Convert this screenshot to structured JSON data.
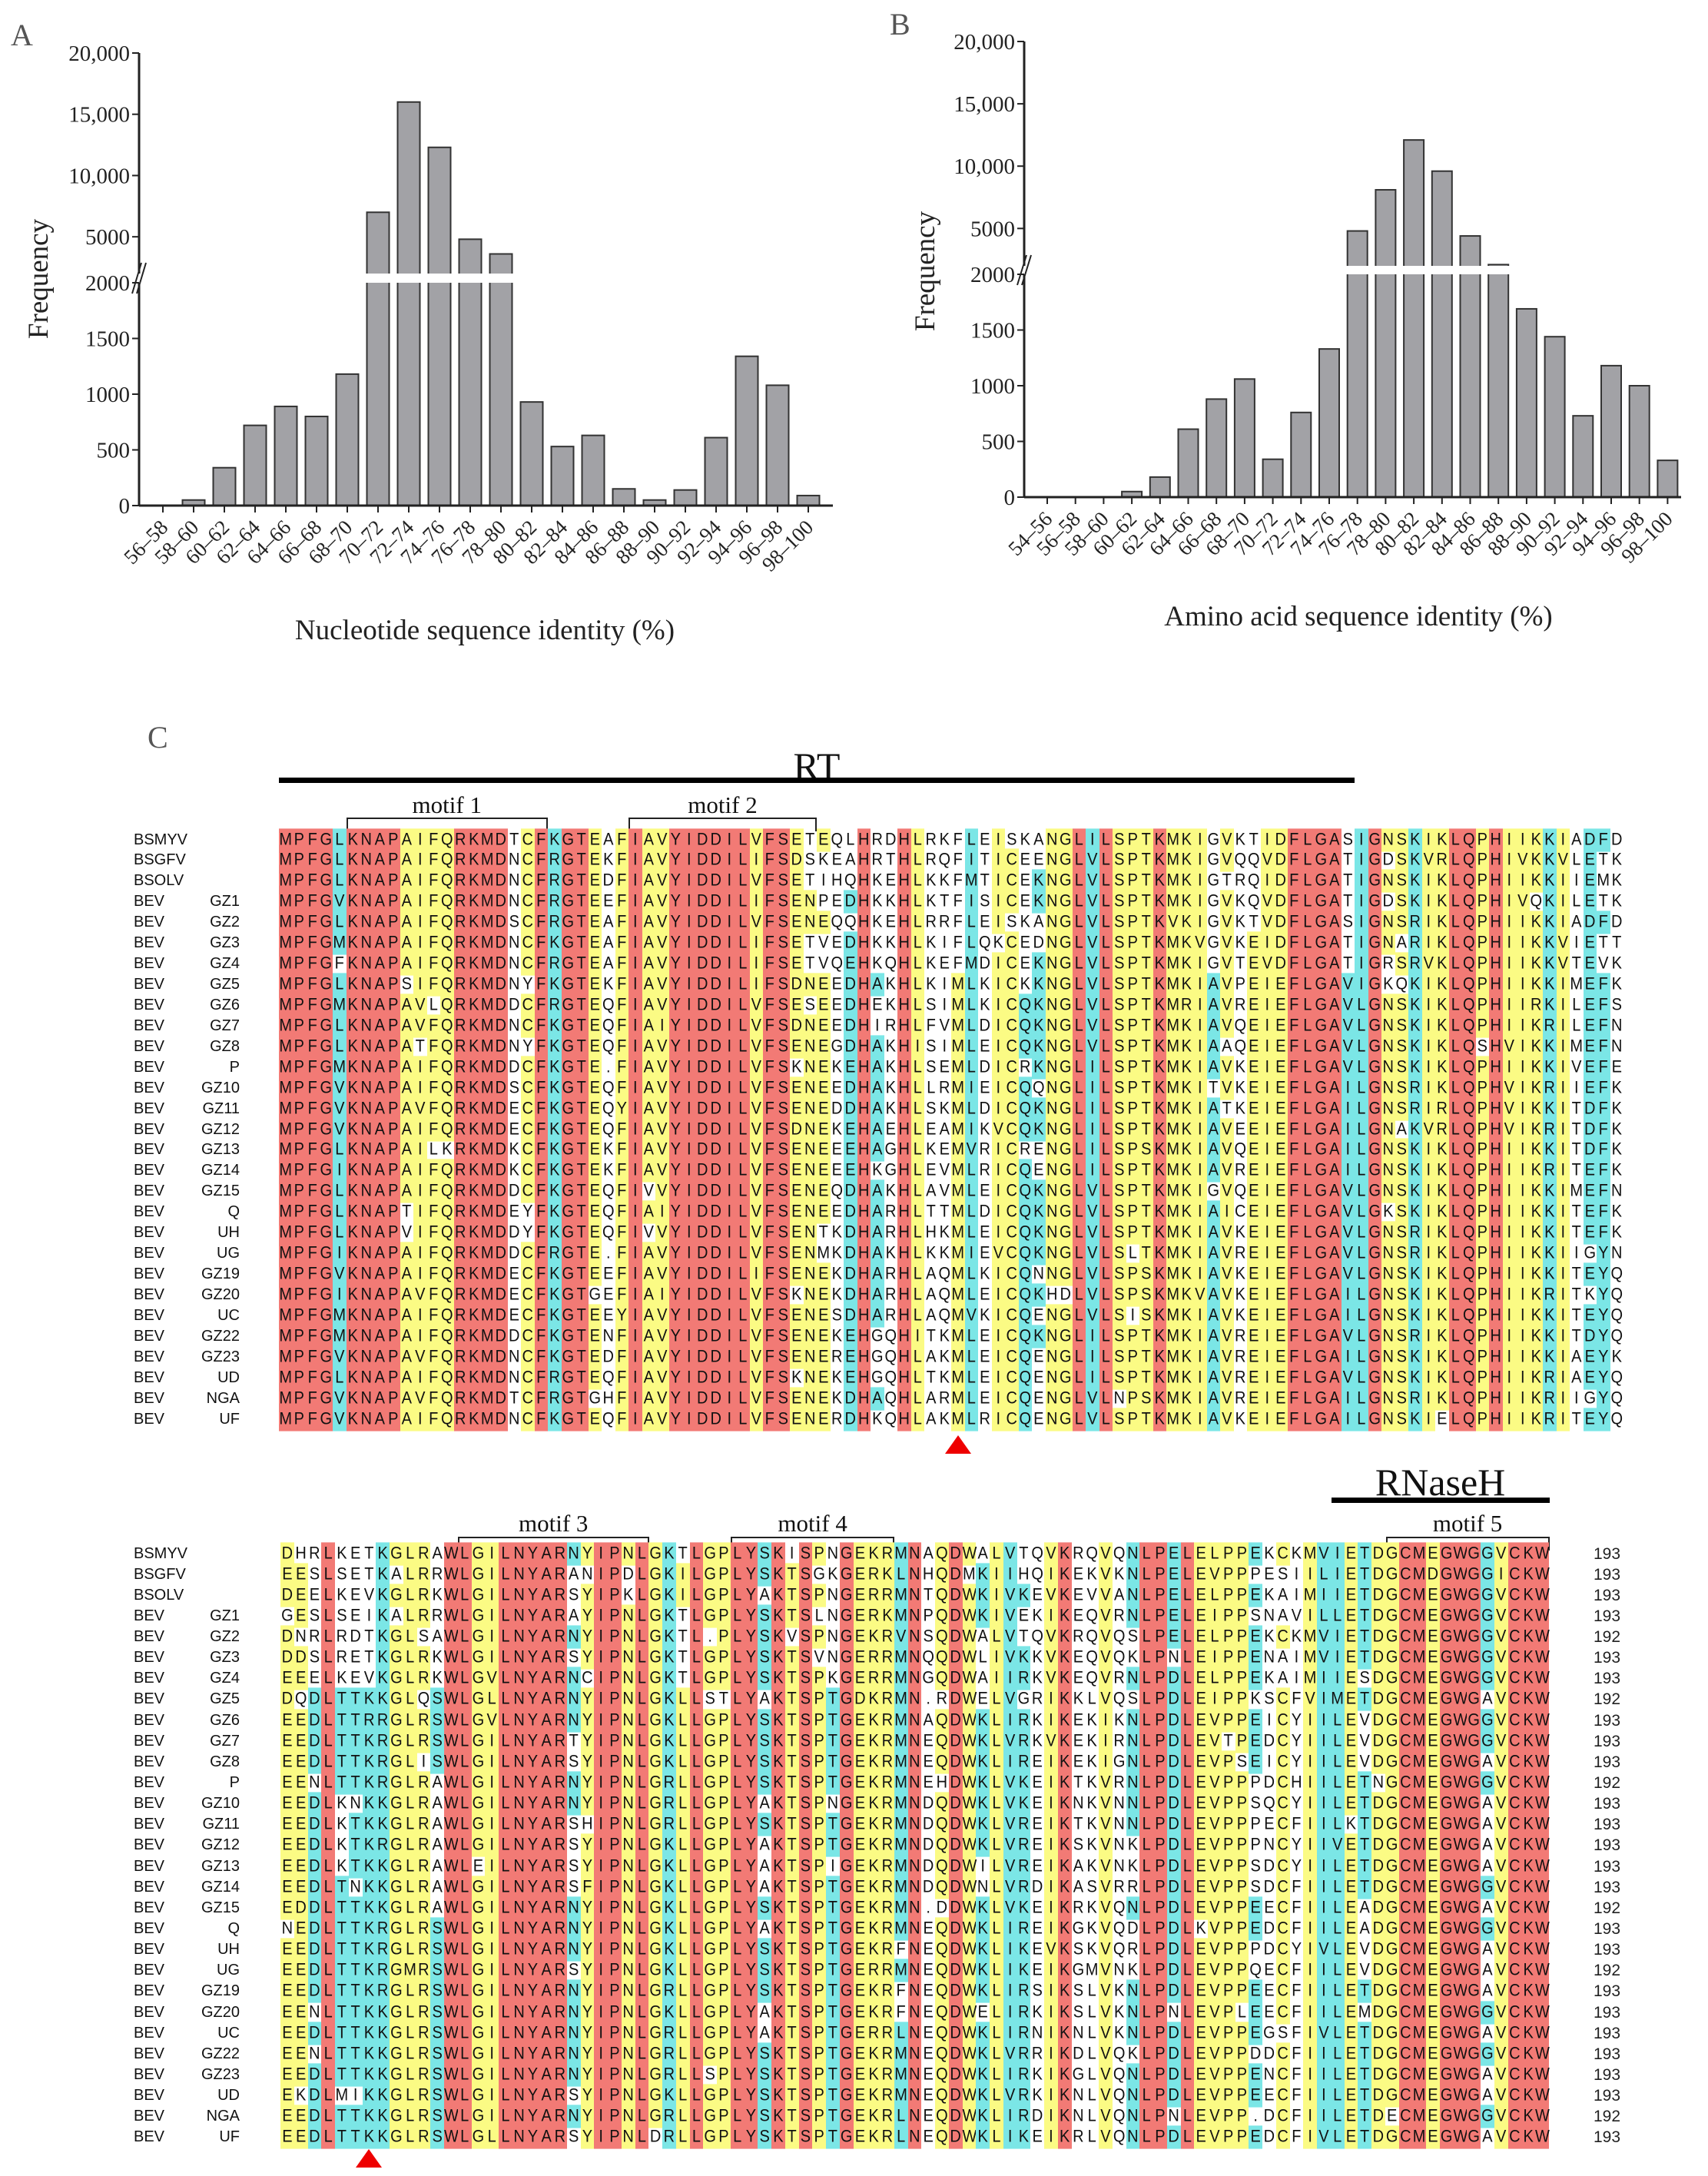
{
  "colors": {
    "identical": "#f27a75",
    "conserved": "#fbfb84",
    "similar": "#7be6e6",
    "bar_fill": "#a2a2a6",
    "marker": "#ee0000"
  },
  "chart_data": [
    {
      "panel_label": "A",
      "type": "bar",
      "title": "",
      "xlabel": "Nucleotide sequence identity (%)",
      "ylabel": "Frequency",
      "axis_break": [
        2000,
        2000
      ],
      "ylim_lower": [
        0,
        2000
      ],
      "ylim_upper": [
        2000,
        20000
      ],
      "yticks": [
        {
          "label": "0",
          "value": 0
        },
        {
          "label": "500",
          "value": 500
        },
        {
          "label": "1000",
          "value": 1000
        },
        {
          "label": "1500",
          "value": 1500
        },
        {
          "label": "2000",
          "value": 2000
        },
        {
          "label": "5000",
          "value": 5000
        },
        {
          "label": "10,000",
          "value": 10000
        },
        {
          "label": "15,000",
          "value": 15000
        },
        {
          "label": "20,000",
          "value": 20000
        }
      ],
      "grid": false,
      "categories": [
        "56–58",
        "58–60",
        "60–62",
        "62–64",
        "64–66",
        "66–68",
        "68–70",
        "70–72",
        "72–74",
        "74–76",
        "76–78",
        "78–80",
        "80–82",
        "82–84",
        "84–86",
        "86–88",
        "88–90",
        "90–92",
        "92–94",
        "94–96",
        "96–98",
        "98–100"
      ],
      "values": [
        0,
        50,
        340,
        720,
        890,
        800,
        1180,
        7000,
        16000,
        12300,
        4800,
        3600,
        930,
        530,
        630,
        150,
        50,
        140,
        610,
        1340,
        1080,
        90
      ]
    },
    {
      "panel_label": "B",
      "type": "bar",
      "title": "",
      "xlabel": "Amino acid sequence identity (%)",
      "ylabel": "Frequency",
      "axis_break": [
        2000,
        2000
      ],
      "ylim_lower": [
        0,
        2000
      ],
      "ylim_upper": [
        2000,
        20000
      ],
      "yticks": [
        {
          "label": "0",
          "value": 0
        },
        {
          "label": "500",
          "value": 500
        },
        {
          "label": "1000",
          "value": 1000
        },
        {
          "label": "1500",
          "value": 1500
        },
        {
          "label": "2000",
          "value": 2000
        },
        {
          "label": "5000",
          "value": 5000
        },
        {
          "label": "10,000",
          "value": 10000
        },
        {
          "label": "15,000",
          "value": 15000
        },
        {
          "label": "20,000",
          "value": 20000
        }
      ],
      "grid": false,
      "categories": [
        "54–56",
        "56–58",
        "58–60",
        "60–62",
        "62–64",
        "64–66",
        "66–68",
        "68–70",
        "70–72",
        "72–74",
        "74–76",
        "76–78",
        "78–80",
        "80–82",
        "82–84",
        "84–86",
        "86–88",
        "88–90",
        "90–92",
        "92–94",
        "94–96",
        "96–98",
        "98–100"
      ],
      "values": [
        0,
        0,
        0,
        50,
        180,
        610,
        880,
        1060,
        340,
        760,
        1330,
        4800,
        8100,
        12100,
        9600,
        4400,
        2100,
        1690,
        1440,
        730,
        1180,
        1000,
        330
      ]
    }
  ],
  "alignment": {
    "panel_label": "C",
    "names": [
      {
        "p": "BSMYV",
        "id": ""
      },
      {
        "p": "BSGFV",
        "id": ""
      },
      {
        "p": "BSOLV",
        "id": ""
      },
      {
        "p": "BEV",
        "id": "GZ1"
      },
      {
        "p": "BEV",
        "id": "GZ2"
      },
      {
        "p": "BEV",
        "id": "GZ3"
      },
      {
        "p": "BEV",
        "id": "GZ4"
      },
      {
        "p": "BEV",
        "id": "GZ5"
      },
      {
        "p": "BEV",
        "id": "GZ6"
      },
      {
        "p": "BEV",
        "id": "GZ7"
      },
      {
        "p": "BEV",
        "id": "GZ8"
      },
      {
        "p": "BEV",
        "id": "P"
      },
      {
        "p": "BEV",
        "id": "GZ10"
      },
      {
        "p": "BEV",
        "id": "GZ11"
      },
      {
        "p": "BEV",
        "id": "GZ12"
      },
      {
        "p": "BEV",
        "id": "GZ13"
      },
      {
        "p": "BEV",
        "id": "GZ14"
      },
      {
        "p": "BEV",
        "id": "GZ15"
      },
      {
        "p": "BEV",
        "id": "Q"
      },
      {
        "p": "BEV",
        "id": "UH"
      },
      {
        "p": "BEV",
        "id": "UG"
      },
      {
        "p": "BEV",
        "id": "GZ19"
      },
      {
        "p": "BEV",
        "id": "GZ20"
      },
      {
        "p": "BEV",
        "id": "UC"
      },
      {
        "p": "BEV",
        "id": "GZ22"
      },
      {
        "p": "BEV",
        "id": "GZ23"
      },
      {
        "p": "BEV",
        "id": "UD"
      },
      {
        "p": "BEV",
        "id": "NGA"
      },
      {
        "p": "BEV",
        "id": "UF"
      }
    ],
    "blocks": [
      {
        "domain_label": "RT",
        "domain_columns": [
          0,
          79
        ],
        "motifs": [
          {
            "label": "motif 1",
            "columns": [
              5,
              19
            ]
          },
          {
            "label": "motif 2",
            "columns": [
              26,
              39
            ]
          }
        ],
        "marker_column": 50,
        "sequences": [
          "MPFGLKNAPAIFQRKMDTCFKGTEAFIAVYIDDILVFSETEQLHRDHLRKFLEISKANGLILSPTKMKIGVKTIDFLGASIGNSKIKLQPHIIKKIADFD",
          "MPFGLKNAPAIFQRKMDNCFRGTEKFIAVYIDDILIFSDSKEAHRTHLRQFITICEENGLVLSPTKMKIGVQQVDFLGATIGDSKVRLQPHIVKKVLETK",
          "MPFGLKNAPAIFQRKMDNCFRGTEDFIAVYIDDILVFSETIHQHKEHLKKFMTICEKNGLVLSPTKMKIGTRQIDFLGATIGNSKIKLQPHIIKKIIEMK",
          "MPFGVKNAPAIFQRKMDNCFRGTEEFIAVYIDDILIFSENPEDHKKHLKTFISICEKNGLVLSPTKMKIGVKQVDFLGATIGDSKIKLQPHIVQKILETK",
          "MPFGLKNAPAIFQRKMDSCFRGTEAFIAVYIDDILVFSENEQQHKEHLRRFLEISKANGLVLSPTKVKIGVKTVDFLGASIGNSRIKLQPHIIKKIADFD",
          "MPFGMKNAPAIFQRKMDNCFKGTEAFIAVYIDDILIFSETVEDHKKHLKIFLQKCEDNGLVLSPTKMKVGVKEIDFLGATIGNARIKLQPHIIKKVIETT",
          "MPFGFKNAPAIFQRKMDNCFRGTEAFIAVYIDDILIFSETVQEHKQHLKEFMDICEKNGLVLSPTKMKIGVTEVDFLGATIGRSRVKLQPHIIKKVTEVK",
          "MPFGLKNAPSIFQRKMDNYFKGTEKFIAVYIDDILIFSDNEEDHAKHLKIMLKICKKNGLVLSPTKMKIAVPEIEFLGAVIGKQKIKLQPHIIKKIMEFK",
          "MPFGMKNAPAVLQRKMDDCFRGTEQFIAVYIDDILVFSESEEDHEKHLSIMLKICQKNGLVLSPTKMRIAVREIEFLGAVLGNSKIKLQPHIIRKILEFS",
          "MPFGLKNAPAVFQRKMDNCFKGTEQFIAIYIDDILVFSDNEEDHIRHLFVMLDICQKNGLVLSPTKMKIAVQEIEFLGAVLGNSKIKLQPHIIKRILEFN",
          "MPFGLKNAPATFQRKMDNYFKGTEQFIAVYIDDILVFSENEGDHAKHISIMLEICQKNGLVLSPTKMKIAAQEIEFLGAVLGNSKIKLQSHVIKKIMEFN",
          "MPFGMKNAPAIFQRKMDDCFKGTE.FIAVYIDDILVFSKNEKEHAKHLSEMLDICRKNGLILSPTKMKIAVKEIEFLGAVLGNSKIKLQPHIIKKIVEFE",
          "MPFGVKNAPAIFQRKMDSCFKGTEQFIAVYIDDILVFSENEEDHAKHLLRMIEICQQNGLILSPTKMKITVKEIEFLGAILGNSRIKLQPHVIKRIIEFK",
          "MPFGVKNAPAVFQRKMDECFKGTEQYIAVYIDDILVFSENEDDHAKHLSKMLDICQKNGLILSPTKMKIATKEIEFLGAILGNSRIRLQPHVIKKITDFK",
          "MPFGVKNAPAIFQRKMDECFKGTEQFIAVYIDDILVFSDNEKEHAEHLEAMIKVCQKNGLILSPTKMKIAVEEIEFLGAILGNAKVRLQPHVIKRITDFK",
          "MPFGLKNAPAILKRKMDKCFKGTEKFIAVYIDDILVFSENEEEHAGHLKEMVRICRENGLILSPSKMKIAVQEIEFLGAILGNSKIKLQPHIIKKITDFK",
          "MPFGIKNAPAIFQRKMDKCFKGTEKFIAVYIDDILVFSENEEEHKGHLEVMLRICQENGLILSPTKMKIAVREIEFLGAILGNSKIKLQPHIIKRITEFK",
          "MPFGLKNAPAIFQRKMDDCFKGTEQFIVVYIDDILVFSENEQDHAKHLAVMLEICQKNGLVLSPTKMKIGVQEIEFLGAVLGNSKIKLQPHIIKKIMEFN",
          "MPFGLKNAPTIFQRKMDEYFKGTEQFIAIYIDDILVFSENEEDHARHLTTMLDICQKNGLVLSPTKMKIAICEIEFLGAVLGKSKIKLQPHIIKKITEFK",
          "MPFGLKNAPVIFQRKMDDYFKGTEQFIVVYIDDILVFSENTKDHARHLHKMLEICQKNGLVLSPTKMKIAVKEIEFLGAVLGNSRIKLQPHIIKKITEFK",
          "MPFGIKNAPAIFQRKMDDCFRGTE.FIAVYIDDILVFSENMKDHAKHLKKMIEVCQKNGLVLSLTKMKIAVREIEFLGAVLGNSRIKLQPHIIKKIIGYN",
          "MPFGVKNAPAIFQRKMDECFKGTEEFIAVYIDDILIFSENEKDHARHLAQMLKICQNNGLVLSPSKMKIAVKEIEFLGAVLGNSKIKLQPHIIKKITEYQ",
          "MPFGIKNAPAVFQRKMDECFKGTGEFIAIYIDDILVFSKNEKDHARHLAQMLEICQKHDLVLSPSKMKVAVKEIEFLGAILGNSKIKLQPHIIKRITKYQ",
          "MPFGMKNAPAIFQRKMDECFKGTEEYIAVYIDDILVFSENESDHARHLAQMVKICQENGLVLSISKMKIAVKEIEFLGAILGNSKIKLQPHIIKKITEYQ",
          "MPFGMKNAPAIFQRKMDDCFKGTENFIAVYIDDILVFSENEKEHGQHITKMLEICQKNGLILSPTKMKIAVREIEFLGAVLGNSRIKLQPHIIKKITDYQ",
          "MPFGVKNAPAVFQRKMDNCFKGTEDFIAVYIDDILVFSENEREHGQHLAKMLEICQENGLILSPTKMKIAVREIEFLGAILGNSKIKLQPHIIKKIAEYK",
          "MPFGLKNAPAIFQRKMDNCFRGTEQFIAVYIDDILVFSKNEKEHGQHLTKMLEICQENGLILSPTKMKIAVREIEFLGAVLGNSKIKLQPHIIKRIAEYQ",
          "MPFGVKNAPAVFQRKMDTCFRGTGHFIAVYIDDILVFSENEKDHAQHLARMLEICQENGLVLNPSKMKIAVREIEFLGAILGNSRIKLQPHIIKRIIGYQ",
          "MPFGVKNAPAIFQRKMDNCFKGTEQFIAVYIDDILVFSENERDHKQHLAKMLRICQENGLVLSPTKMKIAVKEIEFLGAILGNSKIELQPHIIKRITEYQ"
        ],
        "counts": []
      },
      {
        "domain_label": "RNaseH",
        "domain_columns": [
          77,
          92
        ],
        "motifs": [
          {
            "label": "motif 3",
            "columns": [
              13,
              26
            ]
          },
          {
            "label": "motif 4",
            "columns": [
              33,
              44
            ]
          },
          {
            "label": "motif 5",
            "columns": [
              81,
              92
            ]
          }
        ],
        "marker_column": 6,
        "sequences": [
          "DHRLKETKGLRAWLGILNYARNYIPNLGKTLGPLYSKISPNGEKRMNAQDWALVTQVKRQVQNLPELELPPEKCKMVIETDGCMEGWGGVCKW",
          "EESLSETKALRRWLGILNYARANIPDLGKILGPLYSKTSGKGERKLNHQDMKIIHQIKEKVKNLPELEVPPPESIILIETDGCMDGWGGICKW",
          "DEELKEVKGLRKWLGILNYARSYIPKLGKILGPLYAKTSPNGERRMNTQDWKIVKEVKEVVANLPELELPPEKAIMIIETDGCMEGWGGVCKW",
          "GESLSEIKALRRWLGILNYARAYIPNLGKTLGPLYSKTSLNGERKMNPQDWKIVEKIKEQVRNLPELEIPPSNAVILLETDGCMEGWGGVCKW",
          "DNRLRDTKGLSAWLGILNYARNYIPNLGKTL.PLYSKVSPNGEKRVNSQDWALVTQVKRQVQSLPELELPPEKCKMVIETDGCMEGWGGVCKW",
          "DDSLRETKGLRKWLGILNYARSYIPNLGKTLGPLYSKTSVNGERRMNQQDWLIVKKVKEQVQKLPNLEIPPENAIMVIETDGCMEGWGGVCKW",
          "EEELKEVKGLRKWLGVLNYARNCIPNLGKTLGPLYSKTSPKGERRMNGQDWAIIRKVKEQVRNLPDLELPPEKAIMIIESDGCMEGWGGVCKW",
          "DQDLTTKKGLQSWLGLLNYARNYIPNLGKLLSTLYAKTSPTGDKRMN.RDWELVGRIKKLVQSLPDLEIPPKSCFVIMETDGCMEGWGAVCKW",
          "EEDLTTRRGLRSWLGVLNYARNYIPNLGKLLGPLYSKTSPTGEKRMNAQDWKLIRKIKEKIKNLPDLEVPPEICYIILEVDGCMEGWGGVCKW",
          "EEDLTTKRGLRSWLGILNYARTYIPNLGKLLGPLYSKTSPTGEKRMNEQDWKLVRKVKEKIRNLPDLEVTPEDCYIILEVDGCMEGWGGVCKW",
          "EEDLTTKRGLISWLGILNYARSYIPNLGKLLGPLYSKTSPTGEKRMNEQDWKLIREIKEKIGNLPDLEVPSEICYIILEVDGCMEGWGAVCKW",
          "EENLTTKRGLRAWLGILNYARNYIPNLGRLLGPLYSKTSPTGEKRMNEHDWKLVKEIKTKVRNLPDLEVPPPDCHIILETNGCMEGWGGVCKW",
          "EEDLKNKKGLRAWLGILNYARNYIPNLGRLLGPLYAKTSPNGEKRMNDQDWKLVKEIKNKVNNLPDLEVPPSQCYIILETDGCMEGWGAVCKW",
          "EEDLKTKKGLRAWLGILNYARSHIPNLGRLLGPLYSKTSPTGEKRMNDQDWKLVREIKTKVNNLPDLEVPPPECFIILKTDGCMEGWGAVCKW",
          "EEDLKTKRGLRAWLGILNYARSYIPNLGKLLGPLYAKTSPTGEKRMNDQDWKLVREIKSKVNKLPDLEVPPPNCYIIVETDGCMEGWGAVCKW",
          "EEDLKTKKGLRAWLEILNYARSYIPNLGKLLGPLYAKTSPIGEKRMNDQDWILVREIKAKVNKLPDLEVPPSDCYIILETDGCMEGWGAVCKW",
          "EEDLTNKKGLRAWLGILNYARSFIPNLGKLLGPLYAKTSPTGEKRMNDQDWNLVRDIKASVRRLPDLEVPPSDCFIILETDGCMEGWGGVCKW",
          "EDDLTTKKGLRAWLGILNYARNYIPNLGKLLGPLYSKTSPTGEKRMN.DDWKLVKEIKRKVQNLPDLEVPPEECFIILEADGCMEGWGAVCKW",
          "NEDLTTKRGLRSWLGILNYARNYIPNLGKLLGPLYAKTSPTGEKRMNEQDWKLIREIKGKVQDLPDLKVPPEDCFIILEADGCMEGWGGVCKW",
          "EEDLTTKRGLRSWLGILNYARNYIPNLGKLLGPLYSKTSPTGEKRFNEQDWKLIKEVKSKVQRLPDLEVPPPDCYIVLEVDGCMEGWGAVCKW",
          "EEDLTTKRGMRSWLGILNYARSYIPNLGKLLGPLYSKTSPTGERRMNEQDWKLIKEIKGMVNKLPDLEVPPQECFIILEVDGCMEGWGAVCKW",
          "EEDLTTKRGLRSWLGILNYARNYIPNLGRLLGPLYSKTSPTGEKRFNEQDWKLIRSIKSLVKNLPDLEVPPEECFIILETDGCMEGWGAVCKW",
          "EENLTTKKGLRSWLGILNYARNYIPNLGKLLGPLYAKTSPTGEKRFNEQDWELIRKIKSLVKNLPNLEVPLEECFIILEMDGCMEGWGGVCKW",
          "EEDLTTKKGLRSWLGILNYARNYIPNLGRLLGPLYAKTSPTGERRLNEQDWKLIRNIKNLVKNLPDLEVPPEGSFIVLETDGCMEGWGAVCKW",
          "EENLTTKKGLRSWLGILNYARNYIPNLGRLLGPLYSKTSPTGEKRMNEQDWKLVRRIKDLVQKLPDLEVPPDDCFIILETDGCMEGWGGVCKW",
          "EEDLTTKKGLRSWLGILNYARNYIPNLGRLLSPLYSKTSPTGEKRMNEQDWKLIRKIKGLVQNLPDLEVPPENCFIILETDGCMEGWGAVCKW",
          "EKDLMIKKGLRSWLGILNYARSYIPNLGKLLGPLYSKTSPTGEKRMNEQDWKLVRKIKNLVQNLPDLEVPPEECFIILETDGCMEGWGAVCKW",
          "EEDLTTKKGLRSWLGILNYARNYIPNLGRLLGPLYSKTSPTGEKRLNEQDWKLIRDIKNLVQNLPNLEVPP.DCFIILETDECMEGWGGVCKW",
          "EEDLTTKKGLRSWLGLLNYARSYIPNLDRLLGPLYSKTSPTGEKRLNEQDWKLIKEIKRLVQNLPDLEVPPEDCFIVLETDGCMEGWGAVCKW"
        ],
        "counts": [
          "193",
          "193",
          "193",
          "193",
          "192",
          "193",
          "193",
          "192",
          "193",
          "193",
          "193",
          "192",
          "193",
          "193",
          "193",
          "193",
          "193",
          "192",
          "193",
          "193",
          "192",
          "193",
          "193",
          "193",
          "193",
          "193",
          "193",
          "192",
          "193"
        ]
      }
    ]
  }
}
